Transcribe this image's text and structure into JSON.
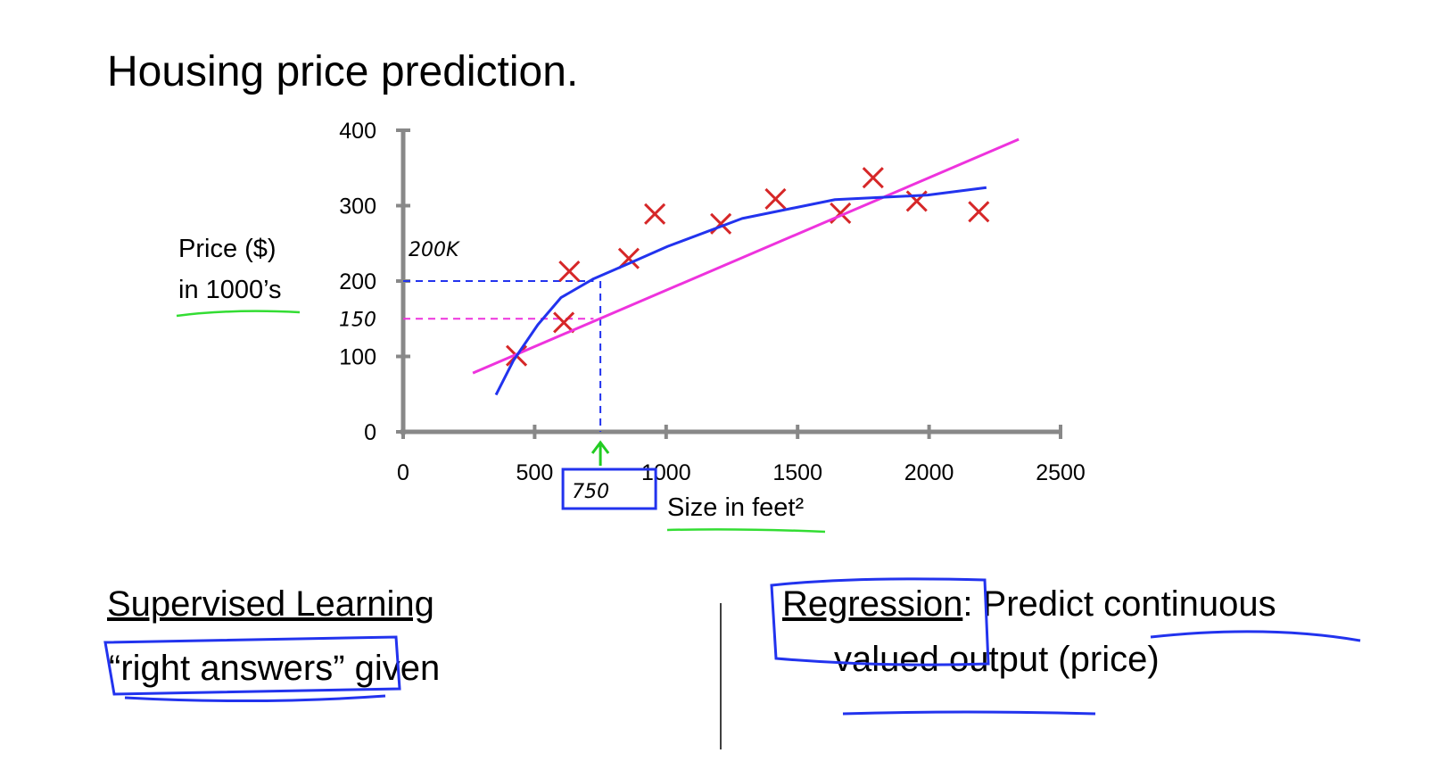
{
  "chart_data": {
    "type": "scatter",
    "title": "Housing price prediction.",
    "xlabel": "Size in feet²",
    "ylabel": [
      "Price ($)",
      "in 1000’s"
    ],
    "xlim": [
      0,
      2500
    ],
    "xticks": [
      0,
      500,
      1000,
      1500,
      2000,
      2500
    ],
    "ylim": [
      0,
      400
    ],
    "yticks": [
      0,
      100,
      200,
      300,
      400
    ],
    "series": [
      {
        "color": "#d62728",
        "mode": "markers",
        "x": [
          431,
          611,
          632,
          858,
          957,
          1208,
          1416,
          1663,
          1787,
          1953,
          2189
        ],
        "values": [
          101,
          145,
          213,
          230,
          289,
          276,
          309,
          290,
          337,
          306,
          292
        ]
      },
      {
        "color": "#ee33dd",
        "mode": "line",
        "x": [
          265,
          2341
        ],
        "values": [
          78,
          388
        ]
      },
      {
        "color": "#2233ee",
        "mode": "line",
        "x": [
          353,
          420,
          512,
          600,
          724,
          850,
          1006,
          1289,
          1642,
          1995,
          2218
        ],
        "values": [
          49,
          95,
          142,
          178,
          203,
          222,
          246,
          283,
          308,
          314,
          324
        ]
      }
    ],
    "annotations": [
      {
        "text": "200K",
        "y": 200,
        "x": 724,
        "color": "#2233ee"
      },
      {
        "text": "150",
        "y": 150,
        "x": 724,
        "color": "#ee33dd"
      },
      {
        "text": "750",
        "x": 750,
        "color": "#22cc22"
      }
    ]
  },
  "slide": {
    "left": {
      "heading": "Supervised Learning",
      "line": "“right answers” given"
    },
    "right": {
      "term": "Regression",
      "rest": ": Predict continuous",
      "line2": "valued output (price)"
    }
  }
}
